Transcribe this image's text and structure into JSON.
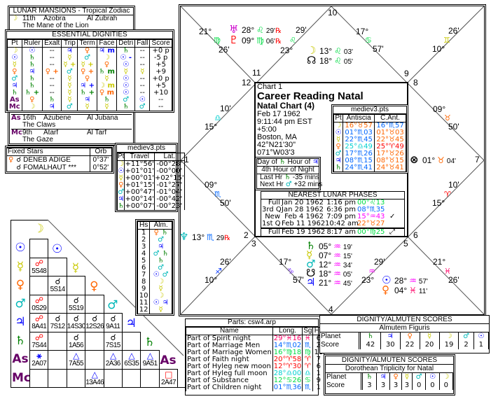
{
  "glyph_colors": {
    "☽": "#c8c800",
    "☉": "#0000ff",
    "☿": "#c8c800",
    "♀": "#ff6600",
    "♂": "#00b8b8",
    "♃": "#0000ff",
    "♄": "#008000",
    "As": "#660066",
    "Mc": "#660066",
    "♅": "#cc00cc",
    "♇": "#ff0000",
    "♆": "#00b8b8",
    "☊": "#000000",
    "☋": "#000000",
    "⊗": "#000000",
    "℞": "#ff0000"
  },
  "sign_colors": {
    "♈": "#ff0000",
    "♉": "#ff6600",
    "♊": "#c8c800",
    "♋": "#00dd44",
    "♌": "#00dd44",
    "♍": "#00dd44",
    "♎": "#00d0d0",
    "♏": "#0066ff",
    "♐": "#0033ff",
    "♑": "#8844ff",
    "♒": "#ff00ff",
    "♓": "#ff0066"
  },
  "lunar_mansions": {
    "title": "LUNAR MANSIONS - Tropical Zodiac",
    "rows": [
      {
        "pt": "☽",
        "num": "11th",
        "name": "Azobra",
        "arabic": "Al Zubrah",
        "meaning": "The Mane of the Lion"
      },
      {
        "pt": "As",
        "num": "16th",
        "name": "Azubene",
        "arabic": "Al Jubana",
        "meaning": "The Claws"
      },
      {
        "pt": "Mc",
        "num": "9th",
        "name": "Atarf",
        "arabic": "Al Tarf",
        "meaning": "The Gaze"
      }
    ]
  },
  "dignities": {
    "title": "ESSENTIAL DIGNITIES",
    "headers": [
      "Pt",
      "Ruler",
      "Exalt",
      "Trip",
      "Term",
      "Face",
      "Detri",
      "Fall",
      "Score"
    ],
    "rows": [
      [
        "☽",
        "☉",
        "--",
        "♃",
        "♀",
        "♃ m",
        "♄",
        "--",
        "+0 p"
      ],
      [
        "☉",
        "♄",
        "--",
        "☿",
        "♂",
        "☽",
        "☉ -",
        "--",
        "-5 p"
      ],
      [
        "☿",
        "♄",
        "--",
        "☿ +",
        "☿ +",
        "♀",
        "☉",
        "--",
        "+5"
      ],
      [
        "♀",
        "♃",
        "♀ +",
        "♂",
        "♀ +",
        "♄ m",
        "☿",
        "☿",
        "+9"
      ],
      [
        "♂",
        "♄",
        "--",
        "☿",
        "♀",
        "☿",
        "☉",
        "--",
        "+0 p"
      ],
      [
        "♃",
        "♄",
        "--",
        "☿",
        "♃ +",
        "☽ m",
        "☉",
        "--",
        "+5"
      ],
      [
        "♄",
        "♄ +",
        "--",
        "☿",
        "♄ +",
        "♀ m",
        "☉",
        "--",
        "+10"
      ],
      [
        "As",
        "♀",
        "♄",
        "☿",
        "♃",
        "♄",
        "♂",
        "☉",
        "--"
      ],
      [
        "Mc",
        "☽",
        "♃",
        "♂",
        "☿",
        "☿",
        "♄",
        "♂",
        "--"
      ]
    ]
  },
  "fixed_stars": {
    "title": "Fixed Stars",
    "orb_header": "Orb",
    "rows": [
      {
        "pt": "♀",
        "aspect": "☌",
        "star": "DENEB ADIGE",
        "orb": "0°37'"
      },
      {
        "pt": "",
        "aspect": "☌",
        "star": "FOMALHAUT ***",
        "orb": "0°52'"
      }
    ]
  },
  "travel": {
    "title": "mediev3.pts",
    "headers": [
      "Pt",
      "Travel",
      "Lat."
    ],
    "rows": [
      [
        "☽",
        "+11°56'",
        "-00°28'"
      ],
      [
        "☉",
        "+01°01'",
        "-00°00'"
      ],
      [
        "☿",
        "+00°01'",
        "+02°15'"
      ],
      [
        "♀",
        "+01°15'",
        "-01°27'"
      ],
      [
        "♂",
        "+00°47'",
        "-01°04'"
      ],
      [
        "♃",
        "+00°14'",
        "-00°42'"
      ],
      [
        "♄",
        "+00°07'",
        "-00°23'"
      ]
    ]
  },
  "almutens": {
    "headers": [
      "Hs",
      "Alm."
    ],
    "rows": [
      [
        "1",
        "♀ ♄"
      ],
      [
        "2",
        "♂"
      ],
      [
        "3",
        "♃"
      ],
      [
        "4",
        "♂ ♄"
      ],
      [
        "5",
        "♄"
      ],
      [
        "6",
        "♂"
      ],
      [
        "7",
        "☉ ♂"
      ],
      [
        "8",
        "☽"
      ],
      [
        "9",
        "☿"
      ],
      [
        "10",
        "☽"
      ],
      [
        "11",
        "☉ ♃"
      ],
      [
        "12",
        "☿"
      ]
    ]
  },
  "aspect_grid": {
    "planets": [
      "☽",
      "☉",
      "☿",
      "♀",
      "♂",
      "♃",
      "♄",
      "As",
      "Mc"
    ],
    "rows": [
      [],
      [
        null
      ],
      [
        {
          "g": "☍",
          "c": "#ff0000",
          "v": "5S48"
        },
        null
      ],
      [
        null,
        {
          "g": "☌",
          "c": "#000000",
          "v": "5S14"
        },
        null
      ],
      [
        {
          "g": "☍",
          "c": "#ff0000",
          "v": "0S29"
        },
        null,
        {
          "g": "☌",
          "c": "#000000",
          "v": "5S19"
        },
        null
      ],
      [
        {
          "g": "☍",
          "c": "#ff0000",
          "v": "8A41"
        },
        {
          "g": "☌",
          "c": "#000000",
          "v": "7S12"
        },
        {
          "g": "☌",
          "c": "#000000",
          "v": "14S30"
        },
        {
          "g": "☌",
          "c": "#000000",
          "v": "12S26"
        },
        {
          "g": "☌",
          "c": "#000000",
          "v": "9A11"
        }
      ],
      [
        {
          "g": "☍",
          "c": "#ff0000",
          "v": "7S44"
        },
        null,
        {
          "g": "☌",
          "c": "#000000",
          "v": "1A56"
        },
        null,
        {
          "g": "☌",
          "c": "#000000",
          "v": "7S15"
        },
        null
      ],
      [
        {
          "g": "⚹",
          "c": "#0000ff",
          "v": "2A07"
        },
        null,
        {
          "g": "△",
          "c": "#0000ff",
          "v": "7A55"
        },
        null,
        {
          "g": "△",
          "c": "#0000ff",
          "v": "2A36"
        },
        {
          "g": "△",
          "c": "#0000ff",
          "v": "6S35"
        },
        {
          "g": "△",
          "c": "#0000ff",
          "v": "9A51"
        }
      ],
      [
        null,
        null,
        null,
        {
          "g": "△",
          "c": "#0000ff",
          "v": "13A46"
        },
        null,
        null,
        null,
        {
          "g": "□",
          "c": "#ff0000",
          "v": "2A47"
        }
      ]
    ]
  },
  "chart_info": {
    "chart_num": "Chart 1",
    "title": "Career Reading Natal",
    "subtitle": "Natal Chart (4)",
    "date": "Feb 17 1962",
    "time": "9:11:44 pm  EST +5:00",
    "place": "Boston, MA",
    "coords": "42°N21'30\" 071°W03'3"
  },
  "antiscia": {
    "title": "mediev3.pts",
    "headers": [
      "Pt",
      "Antiscia",
      "C.Ant."
    ],
    "rows": [
      [
        "☽",
        "16°♉57",
        "16°♏57"
      ],
      [
        "☉",
        "01°♏03",
        "01°♉03"
      ],
      [
        "☿",
        "22°♏45",
        "22°♉45"
      ],
      [
        "♀",
        "25°♎49",
        "25°♈49"
      ],
      [
        "♂",
        "17°♏26",
        "17°♉26"
      ],
      [
        "♃",
        "08°♏15",
        "08°♉15"
      ],
      [
        "♄",
        "24°♏41",
        "24°♉41"
      ]
    ]
  },
  "planetary_hours": {
    "day_label": "Day of",
    "day_planet": "♄",
    "hour_label": "Hour of",
    "hour_planet": "♃",
    "hour_of_night": "4th Hour of Night",
    "last_label": "Last Hr",
    "last_planet": "♄",
    "last_value": "-35 mins",
    "next_label": "Next Hr",
    "next_planet": "♂",
    "next_value": "+32 mins"
  },
  "lunar_phases": {
    "title": "NEAREST LUNAR PHASES",
    "rows": [
      {
        "phase": "Full",
        "date": "Jan 20 1962",
        "time": "1:16 pm",
        "pos": "00°♌13",
        "mark": ""
      },
      {
        "phase": "3rd Q",
        "date": "Jan 28 1962",
        "time": "6:36 pm",
        "pos": "08°♏35",
        "mark": ""
      },
      {
        "phase": "New",
        "date": "Feb 4 1962",
        "time": "7:09 pm",
        "pos": "15°♒43",
        "mark": "✓"
      },
      {
        "phase": "1st Q",
        "date": "Feb 11 1962",
        "time": "10:42 am",
        "pos": "22°♉27",
        "mark": ""
      },
      {
        "phase": "Full",
        "date": "Feb 19 1962",
        "time": "8:17 am",
        "pos": "00°♍25",
        "mark": "⤢"
      }
    ]
  },
  "wheel": {
    "house_numbers": [
      "1",
      "2",
      "3",
      "4",
      "5",
      "6",
      "7",
      "8",
      "9",
      "10",
      "11",
      "12"
    ],
    "cusps": [
      {
        "deg": "21°",
        "sign": "♍",
        "min": "26'"
      },
      {
        "deg": "23°",
        "sign": "♌",
        "min": "29'"
      },
      {
        "deg": "17°",
        "sign": "♋",
        "min": "57'"
      },
      {
        "deg": "10°",
        "sign": "♊",
        "min": "26'"
      },
      {
        "deg": "09°",
        "sign": "♉",
        "min": "50'"
      },
      {
        "deg": "15°",
        "sign": "♈",
        "min": "10'"
      },
      {
        "deg": "21°",
        "sign": "♓",
        "min": "26'"
      },
      {
        "deg": "23°",
        "sign": "♒",
        "min": "29'"
      },
      {
        "deg": "17°",
        "sign": "♑",
        "min": "57'"
      },
      {
        "deg": "10°",
        "sign": "♐",
        "min": "26'"
      },
      {
        "deg": "09°",
        "sign": "♏",
        "min": "50'"
      },
      {
        "deg": "15°",
        "sign": "♎",
        "min": "10'"
      }
    ],
    "planets": [
      {
        "glyph": "♅",
        "deg": "28°",
        "sign": "♌",
        "min": "29'",
        "retro": "℞"
      },
      {
        "glyph": "♇",
        "deg": "09°",
        "sign": "♍",
        "min": "06'",
        "retro": "℞"
      },
      {
        "glyph": "☽",
        "deg": "13°",
        "sign": "♌",
        "min": "03'",
        "retro": ""
      },
      {
        "glyph": "☊",
        "deg": "18°",
        "sign": "♌",
        "min": "05'",
        "retro": ""
      },
      {
        "glyph": "♆",
        "deg": "13°",
        "sign": "♏",
        "min": "29",
        "retro": "℞"
      },
      {
        "glyph": "⊗",
        "deg": "01°",
        "sign": "♉",
        "min": "04'",
        "retro": ""
      },
      {
        "glyph": "♄",
        "deg": "05°",
        "sign": "♒",
        "min": "19'",
        "retro": ""
      },
      {
        "glyph": "☿",
        "deg": "07°",
        "sign": "♒",
        "min": "15'",
        "retro": ""
      },
      {
        "glyph": "♂",
        "deg": "12°",
        "sign": "♒",
        "min": "34'",
        "retro": ""
      },
      {
        "glyph": "☋",
        "deg": "18°",
        "sign": "♒",
        "min": "05'",
        "retro": ""
      },
      {
        "glyph": "♃",
        "deg": "21°",
        "sign": "♒",
        "min": "45'",
        "retro": ""
      },
      {
        "glyph": "☉",
        "deg": "28°",
        "sign": "♒",
        "min": "57'",
        "retro": ""
      },
      {
        "glyph": "♀",
        "deg": "04°",
        "sign": "♓",
        "min": "11'",
        "retro": ""
      }
    ]
  },
  "parts": {
    "title": "Parts: csw4.arp",
    "headers": [
      "Name",
      "Long.",
      "Sg",
      "Hs"
    ],
    "rows": [
      [
        "Part of Spirit night",
        "29°♓16",
        "♓",
        "6"
      ],
      [
        "Part of Marriage Men",
        "14°♏02",
        "♏",
        "2"
      ],
      [
        "Part of Marriage Women",
        "16°♍18",
        "♍",
        "11"
      ],
      [
        "Part of Faith night",
        "20°♈58",
        "♈",
        "7"
      ],
      [
        "Part of Hyleg new moon",
        "12°♈30",
        "♈",
        "6"
      ],
      [
        "Part of Hyleg full moon",
        "28°♎00",
        "♎",
        "1"
      ],
      [
        "Part of Substance",
        "12°♋26",
        "♋",
        "9"
      ],
      [
        "Part of Children night",
        "01°♏36",
        "♏",
        "1"
      ]
    ]
  },
  "almuten_scores": {
    "title": "DIGNITY/ALMUTEN SCORES",
    "subtitle": "Almutem Figuris",
    "row_labels": [
      "Planet",
      "Score"
    ],
    "planets": [
      "♄",
      "♃",
      "♀",
      "☿",
      "☽",
      "♂",
      "☉"
    ],
    "scores": [
      "42",
      "30",
      "22",
      "20",
      "19",
      "2",
      "1"
    ]
  },
  "dorothean_scores": {
    "title": "DIGNITY/ALMUTEN SCORES",
    "subtitle": "Dorothean Triplicity for Natal",
    "row_labels": [
      "Planet",
      "Score"
    ],
    "planets": [
      "♄",
      "♃",
      "♀",
      "☿",
      "♂",
      "☉",
      "☽"
    ],
    "scores": [
      "3",
      "3",
      "3",
      "3",
      "0",
      "0",
      "0"
    ]
  }
}
